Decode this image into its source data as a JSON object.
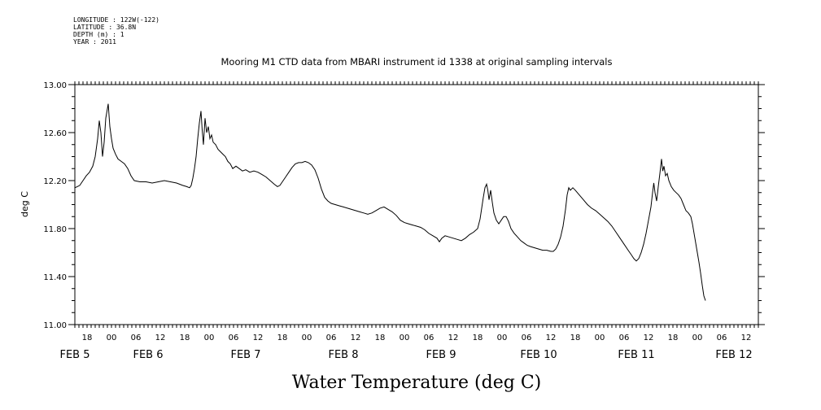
{
  "header": {
    "longitude": "LONGITUDE : 122W(-122)",
    "latitude": "LATITUDE : 36.8N",
    "depth": "DEPTH (m) : 1",
    "year": "YEAR : 2011"
  },
  "chart_data": {
    "type": "line",
    "title": "Mooring M1 CTD data from MBARI instrument id 1338 at original sampling intervals",
    "xlabel": "Water Temperature (deg C)",
    "ylabel": "deg C",
    "ylim": [
      11.0,
      13.0
    ],
    "yticks": [
      "11.00",
      "11.40",
      "11.80",
      "12.20",
      "12.60",
      "13.00"
    ],
    "xlim_hours": [
      15,
      168
    ],
    "hour_labels": [
      {
        "h": 18,
        "label": "18"
      },
      {
        "h": 24,
        "label": "00"
      },
      {
        "h": 30,
        "label": "06"
      },
      {
        "h": 36,
        "label": "12"
      },
      {
        "h": 42,
        "label": "18"
      },
      {
        "h": 48,
        "label": "00"
      },
      {
        "h": 54,
        "label": "06"
      },
      {
        "h": 60,
        "label": "12"
      },
      {
        "h": 66,
        "label": "18"
      },
      {
        "h": 72,
        "label": "00"
      },
      {
        "h": 78,
        "label": "06"
      },
      {
        "h": 84,
        "label": "12"
      },
      {
        "h": 90,
        "label": "18"
      },
      {
        "h": 96,
        "label": "00"
      },
      {
        "h": 102,
        "label": "06"
      },
      {
        "h": 108,
        "label": "12"
      },
      {
        "h": 114,
        "label": "18"
      },
      {
        "h": 120,
        "label": "00"
      },
      {
        "h": 126,
        "label": "06"
      },
      {
        "h": 132,
        "label": "12"
      },
      {
        "h": 138,
        "label": "18"
      },
      {
        "h": 144,
        "label": "00"
      },
      {
        "h": 150,
        "label": "06"
      },
      {
        "h": 156,
        "label": "12"
      },
      {
        "h": 162,
        "label": "18"
      },
      {
        "h": 168,
        "label": "00"
      },
      {
        "h": 174,
        "label": "06"
      },
      {
        "h": 180,
        "label": "12"
      }
    ],
    "date_labels": [
      {
        "h": 15,
        "label": "FEB  5"
      },
      {
        "h": 33,
        "label": "FEB  6"
      },
      {
        "h": 57,
        "label": "FEB  7"
      },
      {
        "h": 81,
        "label": "FEB  8"
      },
      {
        "h": 105,
        "label": "FEB  9"
      },
      {
        "h": 129,
        "label": "FEB 10"
      },
      {
        "h": 153,
        "label": "FEB 11"
      },
      {
        "h": 177,
        "label": "FEB 12"
      }
    ],
    "series": [
      {
        "points": [
          [
            15.0,
            12.14
          ],
          [
            15.6,
            12.15
          ],
          [
            16.2,
            12.16
          ],
          [
            17.0,
            12.2
          ],
          [
            17.8,
            12.24
          ],
          [
            18.6,
            12.27
          ],
          [
            19.4,
            12.32
          ],
          [
            20.0,
            12.4
          ],
          [
            20.6,
            12.55
          ],
          [
            21.0,
            12.7
          ],
          [
            21.4,
            12.6
          ],
          [
            21.8,
            12.4
          ],
          [
            22.2,
            12.52
          ],
          [
            22.6,
            12.72
          ],
          [
            23.0,
            12.8
          ],
          [
            23.2,
            12.84
          ],
          [
            23.6,
            12.65
          ],
          [
            24.0,
            12.55
          ],
          [
            24.4,
            12.47
          ],
          [
            25.0,
            12.42
          ],
          [
            25.6,
            12.38
          ],
          [
            26.4,
            12.36
          ],
          [
            27.2,
            12.34
          ],
          [
            28.0,
            12.3
          ],
          [
            28.8,
            12.24
          ],
          [
            29.6,
            12.2
          ],
          [
            31.0,
            12.19
          ],
          [
            32.5,
            12.19
          ],
          [
            34.0,
            12.18
          ],
          [
            35.5,
            12.19
          ],
          [
            37.0,
            12.2
          ],
          [
            38.5,
            12.19
          ],
          [
            40.0,
            12.18
          ],
          [
            41.5,
            12.16
          ],
          [
            42.5,
            12.15
          ],
          [
            43.2,
            12.14
          ],
          [
            43.6,
            12.16
          ],
          [
            44.0,
            12.22
          ],
          [
            44.4,
            12.3
          ],
          [
            44.8,
            12.4
          ],
          [
            45.2,
            12.55
          ],
          [
            45.6,
            12.68
          ],
          [
            46.0,
            12.78
          ],
          [
            46.3,
            12.62
          ],
          [
            46.6,
            12.5
          ],
          [
            47.0,
            12.72
          ],
          [
            47.4,
            12.6
          ],
          [
            47.8,
            12.65
          ],
          [
            48.2,
            12.55
          ],
          [
            48.6,
            12.58
          ],
          [
            49.0,
            12.52
          ],
          [
            49.6,
            12.5
          ],
          [
            50.2,
            12.46
          ],
          [
            50.8,
            12.44
          ],
          [
            51.4,
            12.42
          ],
          [
            52.0,
            12.4
          ],
          [
            52.6,
            12.36
          ],
          [
            53.2,
            12.34
          ],
          [
            53.8,
            12.3
          ],
          [
            54.6,
            12.32
          ],
          [
            55.4,
            12.3
          ],
          [
            56.2,
            12.28
          ],
          [
            57.0,
            12.29
          ],
          [
            58.0,
            12.27
          ],
          [
            59.0,
            12.28
          ],
          [
            60.0,
            12.27
          ],
          [
            61.0,
            12.25
          ],
          [
            62.0,
            12.23
          ],
          [
            63.0,
            12.2
          ],
          [
            64.0,
            12.17
          ],
          [
            64.8,
            12.15
          ],
          [
            65.4,
            12.16
          ],
          [
            66.0,
            12.19
          ],
          [
            66.8,
            12.23
          ],
          [
            67.6,
            12.27
          ],
          [
            68.4,
            12.31
          ],
          [
            69.2,
            12.34
          ],
          [
            70.0,
            12.35
          ],
          [
            70.8,
            12.35
          ],
          [
            71.6,
            12.36
          ],
          [
            72.4,
            12.35
          ],
          [
            73.2,
            12.33
          ],
          [
            74.0,
            12.29
          ],
          [
            74.8,
            12.22
          ],
          [
            75.6,
            12.13
          ],
          [
            76.4,
            12.06
          ],
          [
            77.2,
            12.03
          ],
          [
            78.0,
            12.01
          ],
          [
            79.0,
            12.0
          ],
          [
            80.0,
            11.99
          ],
          [
            81.0,
            11.98
          ],
          [
            82.0,
            11.97
          ],
          [
            83.0,
            11.96
          ],
          [
            84.0,
            11.95
          ],
          [
            85.0,
            11.94
          ],
          [
            86.0,
            11.93
          ],
          [
            87.0,
            11.92
          ],
          [
            88.0,
            11.93
          ],
          [
            89.0,
            11.95
          ],
          [
            90.0,
            11.97
          ],
          [
            91.0,
            11.98
          ],
          [
            92.0,
            11.96
          ],
          [
            93.0,
            11.94
          ],
          [
            94.0,
            11.91
          ],
          [
            95.0,
            11.87
          ],
          [
            96.0,
            11.85
          ],
          [
            97.0,
            11.84
          ],
          [
            98.0,
            11.83
          ],
          [
            99.0,
            11.82
          ],
          [
            100.0,
            11.81
          ],
          [
            101.0,
            11.79
          ],
          [
            102.0,
            11.76
          ],
          [
            103.0,
            11.74
          ],
          [
            104.0,
            11.72
          ],
          [
            104.6,
            11.69
          ],
          [
            105.2,
            11.72
          ],
          [
            106.0,
            11.74
          ],
          [
            107.0,
            11.73
          ],
          [
            108.0,
            11.72
          ],
          [
            109.0,
            11.71
          ],
          [
            110.0,
            11.7
          ],
          [
            111.0,
            11.72
          ],
          [
            112.0,
            11.75
          ],
          [
            113.0,
            11.77
          ],
          [
            114.0,
            11.8
          ],
          [
            114.6,
            11.88
          ],
          [
            115.0,
            11.97
          ],
          [
            115.4,
            12.06
          ],
          [
            115.8,
            12.14
          ],
          [
            116.2,
            12.17
          ],
          [
            116.5,
            12.12
          ],
          [
            116.8,
            12.04
          ],
          [
            117.2,
            12.12
          ],
          [
            117.6,
            12.02
          ],
          [
            118.0,
            11.93
          ],
          [
            118.6,
            11.87
          ],
          [
            119.2,
            11.84
          ],
          [
            119.8,
            11.87
          ],
          [
            120.4,
            11.9
          ],
          [
            121.0,
            11.9
          ],
          [
            121.6,
            11.86
          ],
          [
            122.2,
            11.8
          ],
          [
            123.0,
            11.76
          ],
          [
            123.8,
            11.73
          ],
          [
            124.6,
            11.7
          ],
          [
            125.4,
            11.68
          ],
          [
            126.2,
            11.66
          ],
          [
            127.0,
            11.65
          ],
          [
            128.0,
            11.64
          ],
          [
            129.0,
            11.63
          ],
          [
            130.0,
            11.62
          ],
          [
            131.0,
            11.62
          ],
          [
            132.0,
            11.61
          ],
          [
            132.6,
            11.61
          ],
          [
            133.2,
            11.63
          ],
          [
            133.8,
            11.67
          ],
          [
            134.4,
            11.73
          ],
          [
            135.0,
            11.82
          ],
          [
            135.6,
            11.96
          ],
          [
            136.0,
            12.08
          ],
          [
            136.4,
            12.14
          ],
          [
            136.8,
            12.12
          ],
          [
            137.4,
            12.14
          ],
          [
            138.0,
            12.12
          ],
          [
            139.0,
            12.08
          ],
          [
            140.0,
            12.04
          ],
          [
            141.0,
            12.0
          ],
          [
            142.0,
            11.97
          ],
          [
            143.0,
            11.95
          ],
          [
            144.0,
            11.92
          ],
          [
            145.0,
            11.89
          ],
          [
            146.0,
            11.86
          ],
          [
            147.0,
            11.82
          ],
          [
            148.0,
            11.77
          ],
          [
            149.0,
            11.72
          ],
          [
            150.0,
            11.67
          ],
          [
            151.0,
            11.62
          ],
          [
            151.8,
            11.58
          ],
          [
            152.4,
            11.55
          ],
          [
            153.0,
            11.53
          ],
          [
            153.6,
            11.55
          ],
          [
            154.2,
            11.6
          ],
          [
            154.8,
            11.67
          ],
          [
            155.4,
            11.76
          ],
          [
            156.0,
            11.87
          ],
          [
            156.6,
            11.98
          ],
          [
            157.0,
            12.1
          ],
          [
            157.3,
            12.18
          ],
          [
            157.6,
            12.1
          ],
          [
            158.0,
            12.03
          ],
          [
            158.4,
            12.15
          ],
          [
            158.8,
            12.26
          ],
          [
            159.2,
            12.38
          ],
          [
            159.5,
            12.28
          ],
          [
            159.8,
            12.32
          ],
          [
            160.2,
            12.24
          ],
          [
            160.6,
            12.26
          ],
          [
            161.0,
            12.2
          ],
          [
            161.6,
            12.15
          ],
          [
            162.2,
            12.12
          ],
          [
            162.8,
            12.1
          ],
          [
            163.4,
            12.08
          ],
          [
            164.0,
            12.05
          ],
          [
            164.6,
            12.0
          ],
          [
            165.2,
            11.95
          ],
          [
            165.8,
            11.93
          ],
          [
            166.4,
            11.9
          ],
          [
            166.8,
            11.84
          ],
          [
            167.2,
            11.76
          ],
          [
            167.6,
            11.68
          ],
          [
            168.0,
            11.6
          ],
          [
            168.4,
            11.52
          ],
          [
            168.8,
            11.43
          ],
          [
            169.2,
            11.33
          ],
          [
            169.6,
            11.24
          ],
          [
            170.0,
            11.2
          ]
        ]
      }
    ]
  }
}
